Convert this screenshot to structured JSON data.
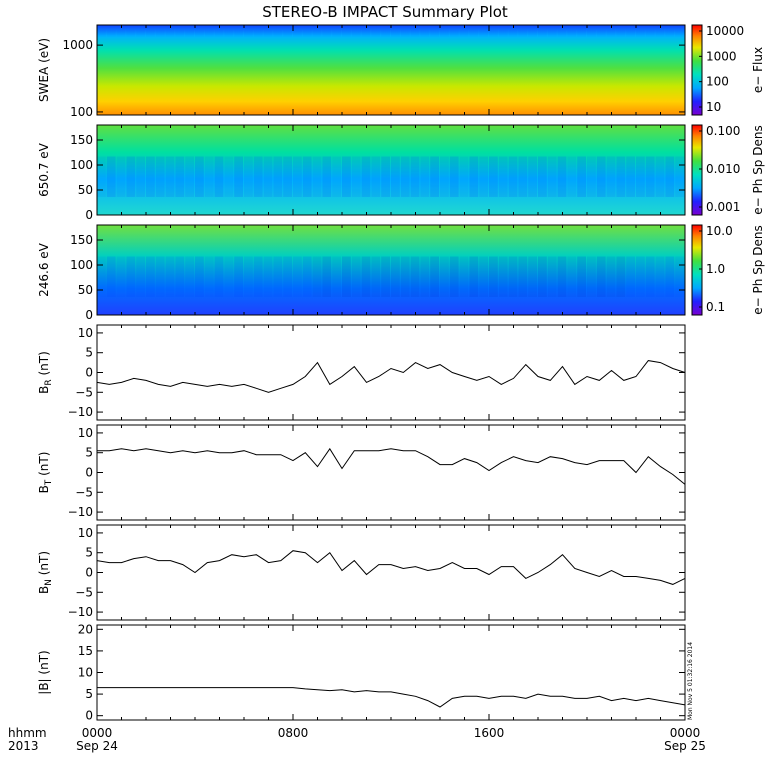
{
  "chart_data": {
    "title": "STEREO-B IMPACT Summary Plot",
    "x_axis": {
      "label_line1": "hhmm",
      "label_line2": "2013",
      "ticks": [
        {
          "hour": 0,
          "label1": "0000",
          "label2": "Sep 24"
        },
        {
          "hour": 8,
          "label1": "0800",
          "label2": ""
        },
        {
          "hour": 16,
          "label1": "1600",
          "label2": ""
        },
        {
          "hour": 24,
          "label1": "0000",
          "label2": "Sep 25"
        }
      ],
      "range_hours": [
        0,
        24
      ]
    },
    "timestamp_text": "Mon Nov  5 01:32:16 2014",
    "spectrograms": [
      {
        "ylabel": "SWEA (eV)",
        "yscale": "log",
        "ylim": [
          90,
          2000
        ],
        "yticks": [
          "1000",
          "100"
        ],
        "colorbar_label": "e−  Flux",
        "colorbar_ticks": [
          "10000",
          "1000",
          "100",
          "10"
        ]
      },
      {
        "ylabel": "650.7 eV",
        "yscale": "linear",
        "ylim": [
          0,
          180
        ],
        "yticks": [
          "150",
          "100",
          "50",
          "0"
        ],
        "colorbar_label": "e− Ph Sp Dens",
        "colorbar_ticks": [
          "0.100",
          "0.010",
          "0.001"
        ]
      },
      {
        "ylabel": "246.6 eV",
        "yscale": "linear",
        "ylim": [
          0,
          180
        ],
        "yticks": [
          "150",
          "100",
          "50",
          "0"
        ],
        "colorbar_label": "e−  Ph Sp Dens",
        "colorbar_ticks": [
          "10.0",
          "1.0",
          "0.1"
        ]
      }
    ],
    "line_panels": [
      {
        "name": "BR",
        "ylabel_main": "B",
        "ylabel_sub": "R",
        "ylabel_unit": " (nT)",
        "ylim": [
          -12,
          12
        ],
        "yticks": [
          "10",
          "5",
          "0",
          "−5",
          "−10"
        ],
        "x": [
          0,
          0.5,
          1,
          1.5,
          2,
          2.5,
          3,
          3.5,
          4,
          4.5,
          5,
          5.5,
          6,
          6.5,
          7,
          7.5,
          8,
          8.5,
          9,
          9.5,
          10,
          10.5,
          11,
          11.5,
          12,
          12.5,
          13,
          13.5,
          14,
          14.5,
          15,
          15.5,
          16,
          16.5,
          17,
          17.5,
          18,
          18.5,
          19,
          19.5,
          20,
          20.5,
          21,
          21.5,
          22,
          22.5,
          23,
          23.5,
          24
        ],
        "y": [
          -2.5,
          -3,
          -2.5,
          -1.5,
          -2,
          -3,
          -3.5,
          -2.5,
          -3,
          -3.5,
          -3,
          -3.5,
          -3,
          -4,
          -5,
          -4,
          -3,
          -1,
          2.5,
          -3,
          -1,
          1.5,
          -2.5,
          -1,
          1,
          0,
          2.5,
          1,
          2,
          0,
          -1,
          -2,
          -1,
          -3,
          -1.5,
          2,
          -1,
          -2,
          1.5,
          -3,
          -1,
          -2,
          0.5,
          -2,
          -1,
          3,
          2.5,
          1,
          0
        ]
      },
      {
        "name": "BT",
        "ylabel_main": "B",
        "ylabel_sub": "T",
        "ylabel_unit": " (nT)",
        "ylim": [
          -12,
          12
        ],
        "yticks": [
          "10",
          "5",
          "0",
          "−5",
          "−10"
        ],
        "x": [
          0,
          0.5,
          1,
          1.5,
          2,
          2.5,
          3,
          3.5,
          4,
          4.5,
          5,
          5.5,
          6,
          6.5,
          7,
          7.5,
          8,
          8.5,
          9,
          9.5,
          10,
          10.5,
          11,
          11.5,
          12,
          12.5,
          13,
          13.5,
          14,
          14.5,
          15,
          15.5,
          16,
          16.5,
          17,
          17.5,
          18,
          18.5,
          19,
          19.5,
          20,
          20.5,
          21,
          21.5,
          22,
          22.5,
          23,
          23.5,
          24
        ],
        "y": [
          5.5,
          5.5,
          6,
          5.5,
          6,
          5.5,
          5,
          5.5,
          5,
          5.5,
          5,
          5,
          5.5,
          4.5,
          4.5,
          4.5,
          3,
          5,
          1.5,
          6,
          1,
          5.5,
          5.5,
          5.5,
          6,
          5.5,
          5.5,
          4,
          2,
          2,
          3.5,
          2.5,
          0.5,
          2.5,
          4,
          3,
          2.5,
          4,
          3.5,
          2.5,
          2,
          3,
          3,
          3,
          0,
          4,
          1.5,
          -0.5,
          -3
        ]
      },
      {
        "name": "BN",
        "ylabel_main": "B",
        "ylabel_sub": "N",
        "ylabel_unit": " (nT)",
        "ylim": [
          -12,
          12
        ],
        "yticks": [
          "10",
          "5",
          "0",
          "−5",
          "−10"
        ],
        "x": [
          0,
          0.5,
          1,
          1.5,
          2,
          2.5,
          3,
          3.5,
          4,
          4.5,
          5,
          5.5,
          6,
          6.5,
          7,
          7.5,
          8,
          8.5,
          9,
          9.5,
          10,
          10.5,
          11,
          11.5,
          12,
          12.5,
          13,
          13.5,
          14,
          14.5,
          15,
          15.5,
          16,
          16.5,
          17,
          17.5,
          18,
          18.5,
          19,
          19.5,
          20,
          20.5,
          21,
          21.5,
          22,
          22.5,
          23,
          23.5,
          24
        ],
        "y": [
          3,
          2.5,
          2.5,
          3.5,
          4,
          3,
          3,
          2,
          0,
          2.5,
          3,
          4.5,
          4,
          4.5,
          2.5,
          3,
          5.5,
          5,
          2.5,
          5,
          0.5,
          3,
          -0.5,
          2,
          2,
          1,
          1.5,
          0.5,
          1,
          2.5,
          1,
          1,
          -0.5,
          1.5,
          1.5,
          -1.5,
          0,
          2,
          4.5,
          1,
          0,
          -1,
          0.5,
          -1,
          -1,
          -1.5,
          -2,
          -3,
          -1.5
        ]
      },
      {
        "name": "Bmag",
        "ylabel_main": "|B| (nT)",
        "ylabel_sub": "",
        "ylabel_unit": "",
        "ylim": [
          -1,
          21
        ],
        "yticks": [
          "20",
          "15",
          "10",
          "5",
          "0"
        ],
        "x": [
          0,
          0.5,
          1,
          1.5,
          2,
          2.5,
          3,
          3.5,
          4,
          4.5,
          5,
          5.5,
          6,
          6.5,
          7,
          7.5,
          8,
          8.5,
          9,
          9.5,
          10,
          10.5,
          11,
          11.5,
          12,
          12.5,
          13,
          13.5,
          14,
          14.5,
          15,
          15.5,
          16,
          16.5,
          17,
          17.5,
          18,
          18.5,
          19,
          19.5,
          20,
          20.5,
          21,
          21.5,
          22,
          22.5,
          23,
          23.5,
          24
        ],
        "y": [
          6.5,
          6.5,
          6.5,
          6.5,
          6.5,
          6.5,
          6.5,
          6.5,
          6.5,
          6.5,
          6.5,
          6.5,
          6.5,
          6.5,
          6.5,
          6.5,
          6.5,
          6.2,
          6,
          5.8,
          6,
          5.5,
          5.8,
          5.5,
          5.5,
          5,
          4.5,
          3.5,
          2,
          4,
          4.5,
          4.5,
          4,
          4.5,
          4.5,
          4,
          5,
          4.5,
          4.5,
          4,
          4,
          4.5,
          3.5,
          4,
          3.5,
          4,
          3.5,
          3,
          2.5
        ]
      }
    ]
  }
}
